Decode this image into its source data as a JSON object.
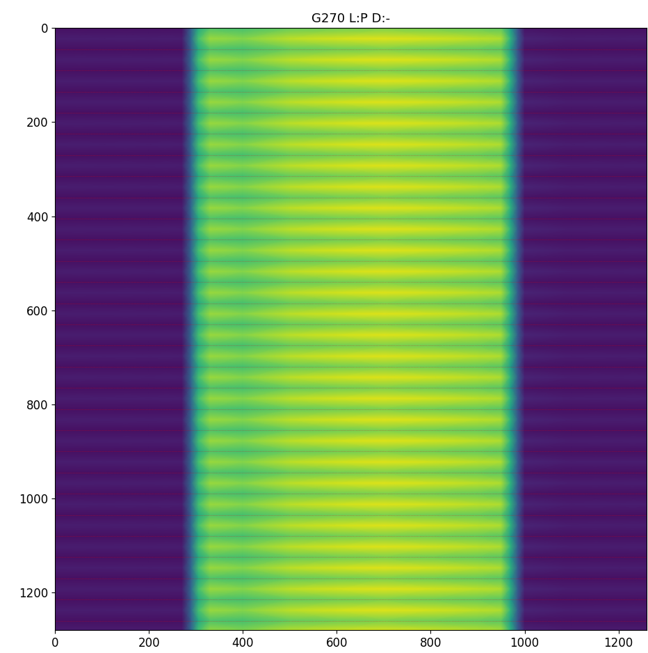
{
  "chart_data": {
    "type": "heatmap",
    "title": "G270 L:P D:-",
    "xlim": [
      0,
      1260
    ],
    "ylim": [
      1280,
      0
    ],
    "xticks": [
      0,
      200,
      400,
      600,
      800,
      1000,
      1200
    ],
    "yticks": [
      0,
      200,
      400,
      600,
      800,
      1000,
      1200
    ],
    "color_range": [
      0,
      1
    ],
    "x": [
      0,
      100,
      200,
      270,
      290,
      305,
      330,
      400,
      500,
      600,
      700,
      800,
      900,
      950,
      970,
      985,
      1000,
      1100,
      1200,
      1260
    ],
    "y": [
      0,
      22.5,
      45,
      67.5,
      90,
      112.5,
      135,
      157.5,
      180,
      202.5,
      225,
      247.5,
      270,
      292.5,
      315,
      337.5,
      360,
      382.5,
      405,
      427.5,
      450,
      472.5,
      495,
      517.5,
      540,
      562.5,
      585,
      607.5,
      630,
      652.5,
      675,
      697.5,
      720,
      742.5,
      765,
      787.5,
      810,
      832.5,
      855,
      877.5,
      900,
      922.5,
      945,
      967.5,
      990,
      1012.5,
      1035,
      1057.5,
      1080,
      1102.5,
      1125,
      1147.5,
      1170,
      1192.5,
      1215,
      1237.5,
      1260,
      1282.5
    ],
    "cells": [
      [
        0.04,
        0.04,
        0.04,
        0.04,
        0.3,
        0.6,
        0.72,
        0.7,
        0.76,
        0.78,
        0.8,
        0.78,
        0.76,
        0.74,
        0.55,
        0.25,
        0.05,
        0.04,
        0.04,
        0.04
      ],
      [
        0.08,
        0.08,
        0.08,
        0.08,
        0.35,
        0.7,
        0.85,
        0.82,
        0.9,
        0.93,
        0.95,
        0.93,
        0.9,
        0.88,
        0.65,
        0.3,
        0.1,
        0.08,
        0.08,
        0.08
      ],
      [
        0.04,
        0.04,
        0.04,
        0.04,
        0.3,
        0.6,
        0.72,
        0.7,
        0.76,
        0.78,
        0.8,
        0.78,
        0.76,
        0.74,
        0.55,
        0.25,
        0.05,
        0.04,
        0.04,
        0.04
      ],
      [
        0.08,
        0.08,
        0.08,
        0.08,
        0.35,
        0.7,
        0.85,
        0.82,
        0.9,
        0.93,
        0.95,
        0.93,
        0.9,
        0.88,
        0.65,
        0.3,
        0.1,
        0.08,
        0.08,
        0.08
      ],
      [
        0.04,
        0.04,
        0.04,
        0.04,
        0.3,
        0.6,
        0.72,
        0.7,
        0.76,
        0.78,
        0.8,
        0.78,
        0.76,
        0.74,
        0.55,
        0.25,
        0.05,
        0.04,
        0.04,
        0.04
      ],
      [
        0.08,
        0.08,
        0.08,
        0.08,
        0.35,
        0.7,
        0.85,
        0.82,
        0.9,
        0.93,
        0.95,
        0.93,
        0.9,
        0.88,
        0.65,
        0.3,
        0.1,
        0.08,
        0.08,
        0.08
      ],
      [
        0.04,
        0.04,
        0.04,
        0.04,
        0.3,
        0.6,
        0.72,
        0.7,
        0.76,
        0.78,
        0.8,
        0.78,
        0.76,
        0.74,
        0.55,
        0.25,
        0.05,
        0.04,
        0.04,
        0.04
      ],
      [
        0.08,
        0.08,
        0.08,
        0.08,
        0.35,
        0.7,
        0.85,
        0.82,
        0.9,
        0.93,
        0.95,
        0.93,
        0.9,
        0.88,
        0.65,
        0.3,
        0.1,
        0.08,
        0.08,
        0.08
      ],
      [
        0.04,
        0.04,
        0.04,
        0.04,
        0.3,
        0.6,
        0.72,
        0.7,
        0.76,
        0.78,
        0.8,
        0.78,
        0.76,
        0.74,
        0.55,
        0.25,
        0.05,
        0.04,
        0.04,
        0.04
      ],
      [
        0.08,
        0.08,
        0.08,
        0.08,
        0.35,
        0.7,
        0.85,
        0.82,
        0.9,
        0.93,
        0.95,
        0.93,
        0.9,
        0.88,
        0.65,
        0.3,
        0.1,
        0.08,
        0.08,
        0.08
      ],
      [
        0.04,
        0.04,
        0.04,
        0.04,
        0.3,
        0.6,
        0.72,
        0.7,
        0.76,
        0.78,
        0.8,
        0.78,
        0.76,
        0.74,
        0.55,
        0.25,
        0.05,
        0.04,
        0.04,
        0.04
      ],
      [
        0.08,
        0.08,
        0.08,
        0.08,
        0.35,
        0.7,
        0.85,
        0.82,
        0.9,
        0.93,
        0.95,
        0.93,
        0.9,
        0.88,
        0.65,
        0.3,
        0.1,
        0.08,
        0.08,
        0.08
      ],
      [
        0.04,
        0.04,
        0.04,
        0.04,
        0.3,
        0.6,
        0.72,
        0.7,
        0.76,
        0.78,
        0.8,
        0.78,
        0.76,
        0.74,
        0.55,
        0.25,
        0.05,
        0.04,
        0.04,
        0.04
      ],
      [
        0.08,
        0.08,
        0.08,
        0.08,
        0.35,
        0.7,
        0.85,
        0.82,
        0.9,
        0.93,
        0.95,
        0.93,
        0.9,
        0.88,
        0.65,
        0.3,
        0.1,
        0.08,
        0.08,
        0.08
      ],
      [
        0.04,
        0.04,
        0.04,
        0.04,
        0.3,
        0.6,
        0.72,
        0.7,
        0.76,
        0.78,
        0.8,
        0.78,
        0.76,
        0.74,
        0.55,
        0.25,
        0.05,
        0.04,
        0.04,
        0.04
      ],
      [
        0.08,
        0.08,
        0.08,
        0.08,
        0.35,
        0.7,
        0.85,
        0.82,
        0.9,
        0.93,
        0.95,
        0.93,
        0.9,
        0.88,
        0.65,
        0.3,
        0.1,
        0.08,
        0.08,
        0.08
      ],
      [
        0.04,
        0.04,
        0.04,
        0.04,
        0.3,
        0.6,
        0.72,
        0.7,
        0.76,
        0.78,
        0.8,
        0.78,
        0.76,
        0.74,
        0.55,
        0.25,
        0.05,
        0.04,
        0.04,
        0.04
      ],
      [
        0.08,
        0.08,
        0.08,
        0.08,
        0.35,
        0.7,
        0.85,
        0.82,
        0.9,
        0.93,
        0.95,
        0.93,
        0.9,
        0.88,
        0.65,
        0.3,
        0.1,
        0.08,
        0.08,
        0.08
      ],
      [
        0.04,
        0.04,
        0.04,
        0.04,
        0.3,
        0.6,
        0.72,
        0.7,
        0.76,
        0.78,
        0.8,
        0.78,
        0.76,
        0.74,
        0.55,
        0.25,
        0.05,
        0.04,
        0.04,
        0.04
      ],
      [
        0.08,
        0.08,
        0.08,
        0.08,
        0.35,
        0.7,
        0.85,
        0.82,
        0.9,
        0.93,
        0.95,
        0.93,
        0.9,
        0.88,
        0.65,
        0.3,
        0.1,
        0.08,
        0.08,
        0.08
      ],
      [
        0.04,
        0.04,
        0.04,
        0.04,
        0.3,
        0.6,
        0.72,
        0.7,
        0.76,
        0.78,
        0.8,
        0.78,
        0.76,
        0.74,
        0.55,
        0.25,
        0.05,
        0.04,
        0.04,
        0.04
      ],
      [
        0.08,
        0.08,
        0.08,
        0.08,
        0.35,
        0.7,
        0.85,
        0.82,
        0.9,
        0.93,
        0.95,
        0.93,
        0.9,
        0.88,
        0.65,
        0.3,
        0.1,
        0.08,
        0.08,
        0.08
      ],
      [
        0.04,
        0.04,
        0.04,
        0.04,
        0.3,
        0.6,
        0.72,
        0.7,
        0.76,
        0.78,
        0.8,
        0.78,
        0.76,
        0.74,
        0.55,
        0.25,
        0.05,
        0.04,
        0.04,
        0.04
      ],
      [
        0.08,
        0.08,
        0.08,
        0.08,
        0.35,
        0.7,
        0.85,
        0.82,
        0.9,
        0.93,
        0.95,
        0.93,
        0.9,
        0.88,
        0.65,
        0.3,
        0.1,
        0.08,
        0.08,
        0.08
      ],
      [
        0.04,
        0.04,
        0.04,
        0.04,
        0.3,
        0.6,
        0.72,
        0.7,
        0.76,
        0.78,
        0.8,
        0.78,
        0.76,
        0.74,
        0.55,
        0.25,
        0.05,
        0.04,
        0.04,
        0.04
      ],
      [
        0.08,
        0.08,
        0.08,
        0.08,
        0.35,
        0.7,
        0.85,
        0.82,
        0.9,
        0.93,
        0.95,
        0.93,
        0.9,
        0.88,
        0.65,
        0.3,
        0.1,
        0.08,
        0.08,
        0.08
      ],
      [
        0.04,
        0.04,
        0.04,
        0.04,
        0.3,
        0.6,
        0.72,
        0.7,
        0.76,
        0.78,
        0.8,
        0.78,
        0.76,
        0.74,
        0.55,
        0.25,
        0.05,
        0.04,
        0.04,
        0.04
      ],
      [
        0.08,
        0.08,
        0.08,
        0.08,
        0.35,
        0.7,
        0.85,
        0.82,
        0.9,
        0.93,
        0.95,
        0.93,
        0.9,
        0.88,
        0.65,
        0.3,
        0.1,
        0.08,
        0.08,
        0.08
      ],
      [
        0.04,
        0.04,
        0.04,
        0.04,
        0.3,
        0.6,
        0.72,
        0.7,
        0.76,
        0.78,
        0.8,
        0.78,
        0.76,
        0.74,
        0.55,
        0.25,
        0.05,
        0.04,
        0.04,
        0.04
      ],
      [
        0.08,
        0.08,
        0.08,
        0.08,
        0.35,
        0.7,
        0.85,
        0.82,
        0.9,
        0.93,
        0.95,
        0.93,
        0.9,
        0.88,
        0.65,
        0.3,
        0.1,
        0.08,
        0.08,
        0.08
      ],
      [
        0.04,
        0.04,
        0.04,
        0.04,
        0.3,
        0.6,
        0.72,
        0.7,
        0.76,
        0.78,
        0.8,
        0.78,
        0.76,
        0.74,
        0.55,
        0.25,
        0.05,
        0.04,
        0.04,
        0.04
      ],
      [
        0.08,
        0.08,
        0.08,
        0.08,
        0.35,
        0.7,
        0.85,
        0.82,
        0.9,
        0.93,
        0.95,
        0.93,
        0.9,
        0.88,
        0.65,
        0.3,
        0.1,
        0.08,
        0.08,
        0.08
      ],
      [
        0.04,
        0.04,
        0.04,
        0.04,
        0.3,
        0.6,
        0.72,
        0.7,
        0.76,
        0.78,
        0.8,
        0.78,
        0.76,
        0.74,
        0.55,
        0.25,
        0.05,
        0.04,
        0.04,
        0.04
      ],
      [
        0.08,
        0.08,
        0.08,
        0.08,
        0.35,
        0.7,
        0.85,
        0.82,
        0.9,
        0.93,
        0.95,
        0.93,
        0.9,
        0.88,
        0.65,
        0.3,
        0.1,
        0.08,
        0.08,
        0.08
      ],
      [
        0.04,
        0.04,
        0.04,
        0.04,
        0.3,
        0.6,
        0.72,
        0.7,
        0.76,
        0.78,
        0.8,
        0.78,
        0.76,
        0.74,
        0.55,
        0.25,
        0.05,
        0.04,
        0.04,
        0.04
      ],
      [
        0.08,
        0.08,
        0.08,
        0.08,
        0.35,
        0.7,
        0.85,
        0.82,
        0.9,
        0.93,
        0.95,
        0.93,
        0.9,
        0.88,
        0.65,
        0.3,
        0.1,
        0.08,
        0.08,
        0.08
      ],
      [
        0.04,
        0.04,
        0.04,
        0.04,
        0.3,
        0.6,
        0.72,
        0.7,
        0.76,
        0.78,
        0.8,
        0.78,
        0.76,
        0.74,
        0.55,
        0.25,
        0.05,
        0.04,
        0.04,
        0.04
      ],
      [
        0.08,
        0.08,
        0.08,
        0.08,
        0.35,
        0.7,
        0.85,
        0.82,
        0.9,
        0.93,
        0.95,
        0.93,
        0.9,
        0.88,
        0.65,
        0.3,
        0.1,
        0.08,
        0.08,
        0.08
      ],
      [
        0.04,
        0.04,
        0.04,
        0.04,
        0.3,
        0.6,
        0.72,
        0.7,
        0.76,
        0.78,
        0.8,
        0.78,
        0.76,
        0.74,
        0.55,
        0.25,
        0.05,
        0.04,
        0.04,
        0.04
      ],
      [
        0.08,
        0.08,
        0.08,
        0.08,
        0.35,
        0.7,
        0.85,
        0.82,
        0.9,
        0.93,
        0.95,
        0.93,
        0.9,
        0.88,
        0.65,
        0.3,
        0.1,
        0.08,
        0.08,
        0.08
      ],
      [
        0.04,
        0.04,
        0.04,
        0.04,
        0.3,
        0.6,
        0.72,
        0.7,
        0.76,
        0.78,
        0.8,
        0.78,
        0.76,
        0.74,
        0.55,
        0.25,
        0.05,
        0.04,
        0.04,
        0.04
      ],
      [
        0.08,
        0.08,
        0.08,
        0.08,
        0.35,
        0.7,
        0.85,
        0.82,
        0.9,
        0.93,
        0.95,
        0.93,
        0.9,
        0.88,
        0.65,
        0.3,
        0.1,
        0.08,
        0.08,
        0.08
      ],
      [
        0.04,
        0.04,
        0.04,
        0.04,
        0.3,
        0.6,
        0.72,
        0.7,
        0.76,
        0.78,
        0.8,
        0.78,
        0.76,
        0.74,
        0.55,
        0.25,
        0.05,
        0.04,
        0.04,
        0.04
      ],
      [
        0.08,
        0.08,
        0.08,
        0.08,
        0.35,
        0.7,
        0.85,
        0.82,
        0.9,
        0.93,
        0.95,
        0.93,
        0.9,
        0.88,
        0.65,
        0.3,
        0.1,
        0.08,
        0.08,
        0.08
      ],
      [
        0.04,
        0.04,
        0.04,
        0.04,
        0.3,
        0.6,
        0.72,
        0.7,
        0.76,
        0.78,
        0.8,
        0.78,
        0.76,
        0.74,
        0.55,
        0.25,
        0.05,
        0.04,
        0.04,
        0.04
      ],
      [
        0.08,
        0.08,
        0.08,
        0.08,
        0.35,
        0.7,
        0.85,
        0.82,
        0.9,
        0.93,
        0.95,
        0.93,
        0.9,
        0.88,
        0.65,
        0.3,
        0.1,
        0.08,
        0.08,
        0.08
      ],
      [
        0.04,
        0.04,
        0.04,
        0.04,
        0.3,
        0.6,
        0.72,
        0.7,
        0.76,
        0.78,
        0.8,
        0.78,
        0.76,
        0.74,
        0.55,
        0.25,
        0.05,
        0.04,
        0.04,
        0.04
      ],
      [
        0.08,
        0.08,
        0.08,
        0.08,
        0.35,
        0.7,
        0.85,
        0.82,
        0.9,
        0.93,
        0.95,
        0.93,
        0.9,
        0.88,
        0.65,
        0.3,
        0.1,
        0.08,
        0.08,
        0.08
      ],
      [
        0.04,
        0.04,
        0.04,
        0.04,
        0.3,
        0.6,
        0.72,
        0.7,
        0.76,
        0.78,
        0.8,
        0.78,
        0.76,
        0.74,
        0.55,
        0.25,
        0.05,
        0.04,
        0.04,
        0.04
      ],
      [
        0.08,
        0.08,
        0.08,
        0.08,
        0.35,
        0.7,
        0.85,
        0.82,
        0.9,
        0.93,
        0.95,
        0.93,
        0.9,
        0.88,
        0.65,
        0.3,
        0.1,
        0.08,
        0.08,
        0.08
      ],
      [
        0.04,
        0.04,
        0.04,
        0.04,
        0.3,
        0.6,
        0.72,
        0.7,
        0.76,
        0.78,
        0.8,
        0.78,
        0.76,
        0.74,
        0.55,
        0.25,
        0.05,
        0.04,
        0.04,
        0.04
      ],
      [
        0.08,
        0.08,
        0.08,
        0.08,
        0.35,
        0.7,
        0.85,
        0.82,
        0.9,
        0.93,
        0.95,
        0.93,
        0.9,
        0.88,
        0.65,
        0.3,
        0.1,
        0.08,
        0.08,
        0.08
      ],
      [
        0.04,
        0.04,
        0.04,
        0.04,
        0.3,
        0.6,
        0.72,
        0.7,
        0.76,
        0.78,
        0.8,
        0.78,
        0.76,
        0.74,
        0.55,
        0.25,
        0.05,
        0.04,
        0.04,
        0.04
      ],
      [
        0.08,
        0.08,
        0.08,
        0.08,
        0.35,
        0.7,
        0.85,
        0.82,
        0.9,
        0.93,
        0.95,
        0.93,
        0.9,
        0.88,
        0.65,
        0.3,
        0.1,
        0.08,
        0.08,
        0.08
      ],
      [
        0.04,
        0.04,
        0.04,
        0.04,
        0.3,
        0.6,
        0.72,
        0.7,
        0.76,
        0.78,
        0.8,
        0.78,
        0.76,
        0.74,
        0.55,
        0.25,
        0.05,
        0.04,
        0.04,
        0.04
      ],
      [
        0.08,
        0.08,
        0.08,
        0.08,
        0.35,
        0.7,
        0.85,
        0.82,
        0.9,
        0.93,
        0.95,
        0.93,
        0.9,
        0.88,
        0.65,
        0.3,
        0.1,
        0.08,
        0.08,
        0.08
      ],
      [
        0.04,
        0.04,
        0.04,
        0.04,
        0.3,
        0.6,
        0.72,
        0.7,
        0.76,
        0.78,
        0.8,
        0.78,
        0.76,
        0.74,
        0.55,
        0.25,
        0.05,
        0.04,
        0.04,
        0.04
      ],
      [
        0.08,
        0.08,
        0.08,
        0.08,
        0.35,
        0.7,
        0.85,
        0.82,
        0.9,
        0.93,
        0.95,
        0.93,
        0.9,
        0.88,
        0.65,
        0.3,
        0.1,
        0.08,
        0.08,
        0.08
      ]
    ],
    "lines": {
      "y": [
        45,
        90,
        135,
        180,
        225,
        270,
        315,
        360,
        405,
        450,
        495,
        540,
        585,
        630,
        675,
        720,
        765,
        810,
        855,
        900,
        945,
        990,
        1035,
        1080,
        1125,
        1170,
        1215,
        1260
      ],
      "color": "#ff0000",
      "line_style": "dotted"
    }
  }
}
